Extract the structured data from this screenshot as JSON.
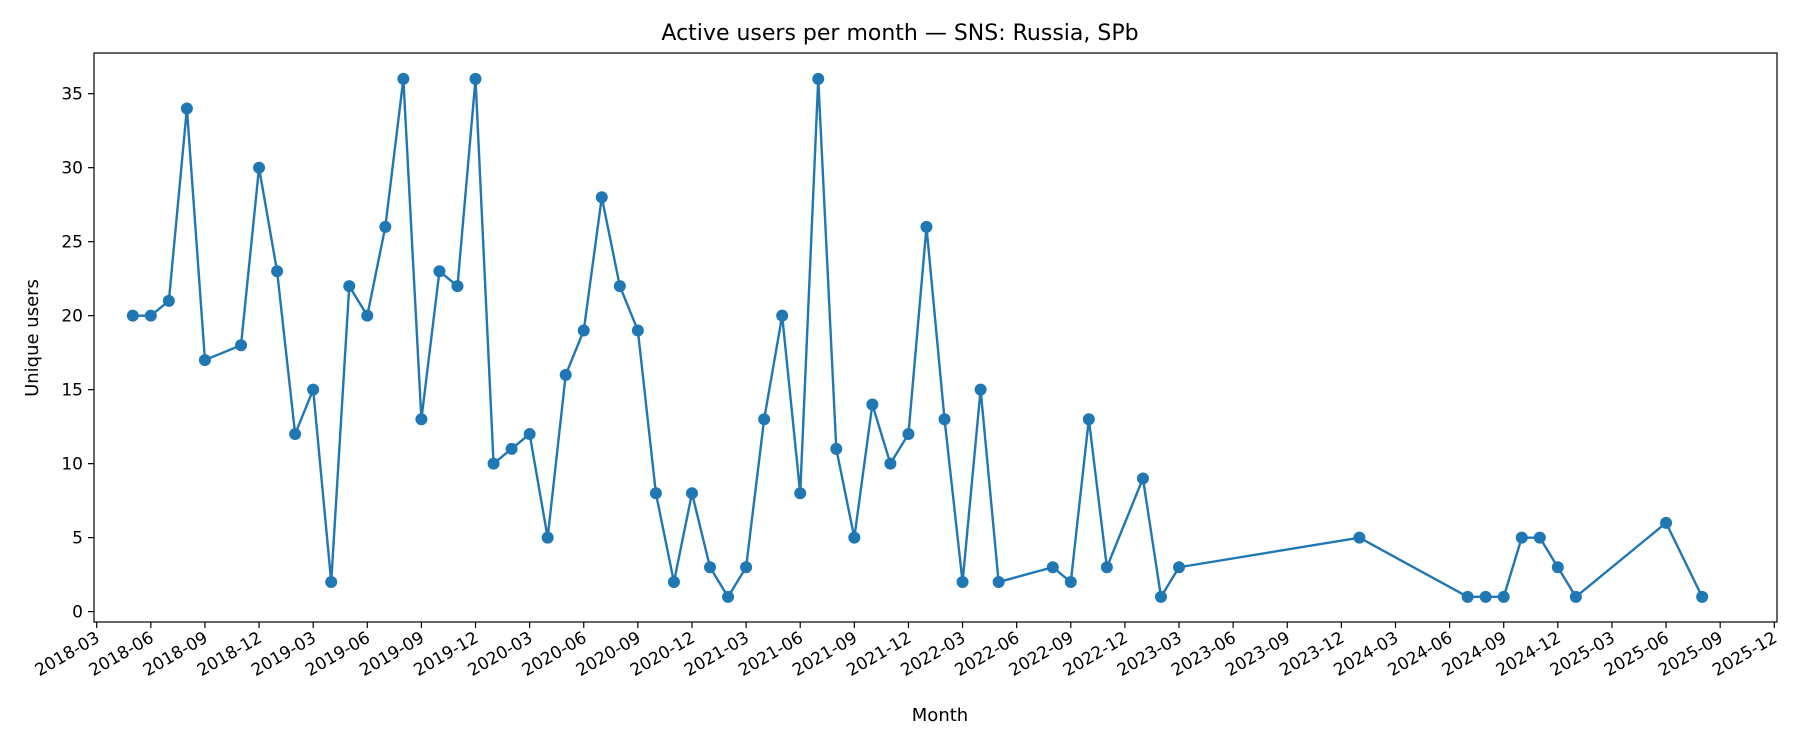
{
  "chart_data": {
    "type": "line",
    "title": "Active users per month — SNS: Russia, SPb",
    "xlabel": "Month",
    "ylabel": "Unique users",
    "ylim": [
      0,
      37.75
    ],
    "xlim": [
      "2018-03",
      "2025-12"
    ],
    "yticks": [
      0,
      5,
      10,
      15,
      20,
      25,
      30,
      35
    ],
    "xticks": [
      "2018-03",
      "2018-06",
      "2018-09",
      "2018-12",
      "2019-03",
      "2019-06",
      "2019-09",
      "2019-12",
      "2020-03",
      "2020-06",
      "2020-09",
      "2020-12",
      "2021-03",
      "2021-06",
      "2021-09",
      "2021-12",
      "2022-03",
      "2022-06",
      "2022-09",
      "2022-12",
      "2023-03",
      "2023-06",
      "2023-09",
      "2023-12",
      "2024-03",
      "2024-06",
      "2024-09",
      "2024-12",
      "2025-03",
      "2025-06",
      "2025-09",
      "2025-12"
    ],
    "grid": false,
    "legend": "none",
    "series": [
      {
        "color": "#1f77b4",
        "points": [
          {
            "x": "2018-05",
            "y": 20
          },
          {
            "x": "2018-06",
            "y": 20
          },
          {
            "x": "2018-07",
            "y": 21
          },
          {
            "x": "2018-08",
            "y": 34
          },
          {
            "x": "2018-09",
            "y": 17
          },
          {
            "x": "2018-11",
            "y": 18
          },
          {
            "x": "2018-12",
            "y": 30
          },
          {
            "x": "2019-01",
            "y": 23
          },
          {
            "x": "2019-02",
            "y": 12
          },
          {
            "x": "2019-03",
            "y": 15
          },
          {
            "x": "2019-04",
            "y": 2
          },
          {
            "x": "2019-05",
            "y": 22
          },
          {
            "x": "2019-06",
            "y": 20
          },
          {
            "x": "2019-07",
            "y": 26
          },
          {
            "x": "2019-08",
            "y": 36
          },
          {
            "x": "2019-09",
            "y": 13
          },
          {
            "x": "2019-10",
            "y": 23
          },
          {
            "x": "2019-11",
            "y": 22
          },
          {
            "x": "2019-12",
            "y": 36
          },
          {
            "x": "2020-01",
            "y": 10
          },
          {
            "x": "2020-02",
            "y": 11
          },
          {
            "x": "2020-03",
            "y": 12
          },
          {
            "x": "2020-04",
            "y": 5
          },
          {
            "x": "2020-05",
            "y": 16
          },
          {
            "x": "2020-06",
            "y": 19
          },
          {
            "x": "2020-07",
            "y": 28
          },
          {
            "x": "2020-08",
            "y": 22
          },
          {
            "x": "2020-09",
            "y": 19
          },
          {
            "x": "2020-10",
            "y": 8
          },
          {
            "x": "2020-11",
            "y": 2
          },
          {
            "x": "2020-12",
            "y": 8
          },
          {
            "x": "2021-01",
            "y": 3
          },
          {
            "x": "2021-02",
            "y": 1
          },
          {
            "x": "2021-03",
            "y": 3
          },
          {
            "x": "2021-04",
            "y": 13
          },
          {
            "x": "2021-05",
            "y": 20
          },
          {
            "x": "2021-06",
            "y": 8
          },
          {
            "x": "2021-07",
            "y": 36
          },
          {
            "x": "2021-08",
            "y": 11
          },
          {
            "x": "2021-09",
            "y": 5
          },
          {
            "x": "2021-10",
            "y": 14
          },
          {
            "x": "2021-11",
            "y": 10
          },
          {
            "x": "2021-12",
            "y": 12
          },
          {
            "x": "2022-01",
            "y": 26
          },
          {
            "x": "2022-02",
            "y": 13
          },
          {
            "x": "2022-03",
            "y": 2
          },
          {
            "x": "2022-04",
            "y": 15
          },
          {
            "x": "2022-05",
            "y": 2
          },
          {
            "x": "2022-08",
            "y": 3
          },
          {
            "x": "2022-09",
            "y": 2
          },
          {
            "x": "2022-10",
            "y": 13
          },
          {
            "x": "2022-11",
            "y": 3
          },
          {
            "x": "2023-01",
            "y": 9
          },
          {
            "x": "2023-02",
            "y": 1
          },
          {
            "x": "2023-03",
            "y": 3
          },
          {
            "x": "2024-01",
            "y": 5
          },
          {
            "x": "2024-07",
            "y": 1
          },
          {
            "x": "2024-08",
            "y": 1
          },
          {
            "x": "2024-09",
            "y": 1
          },
          {
            "x": "2024-10",
            "y": 5
          },
          {
            "x": "2024-11",
            "y": 5
          },
          {
            "x": "2024-12",
            "y": 3
          },
          {
            "x": "2025-01",
            "y": 1
          },
          {
            "x": "2025-06",
            "y": 6
          },
          {
            "x": "2025-08",
            "y": 1
          }
        ]
      }
    ]
  }
}
